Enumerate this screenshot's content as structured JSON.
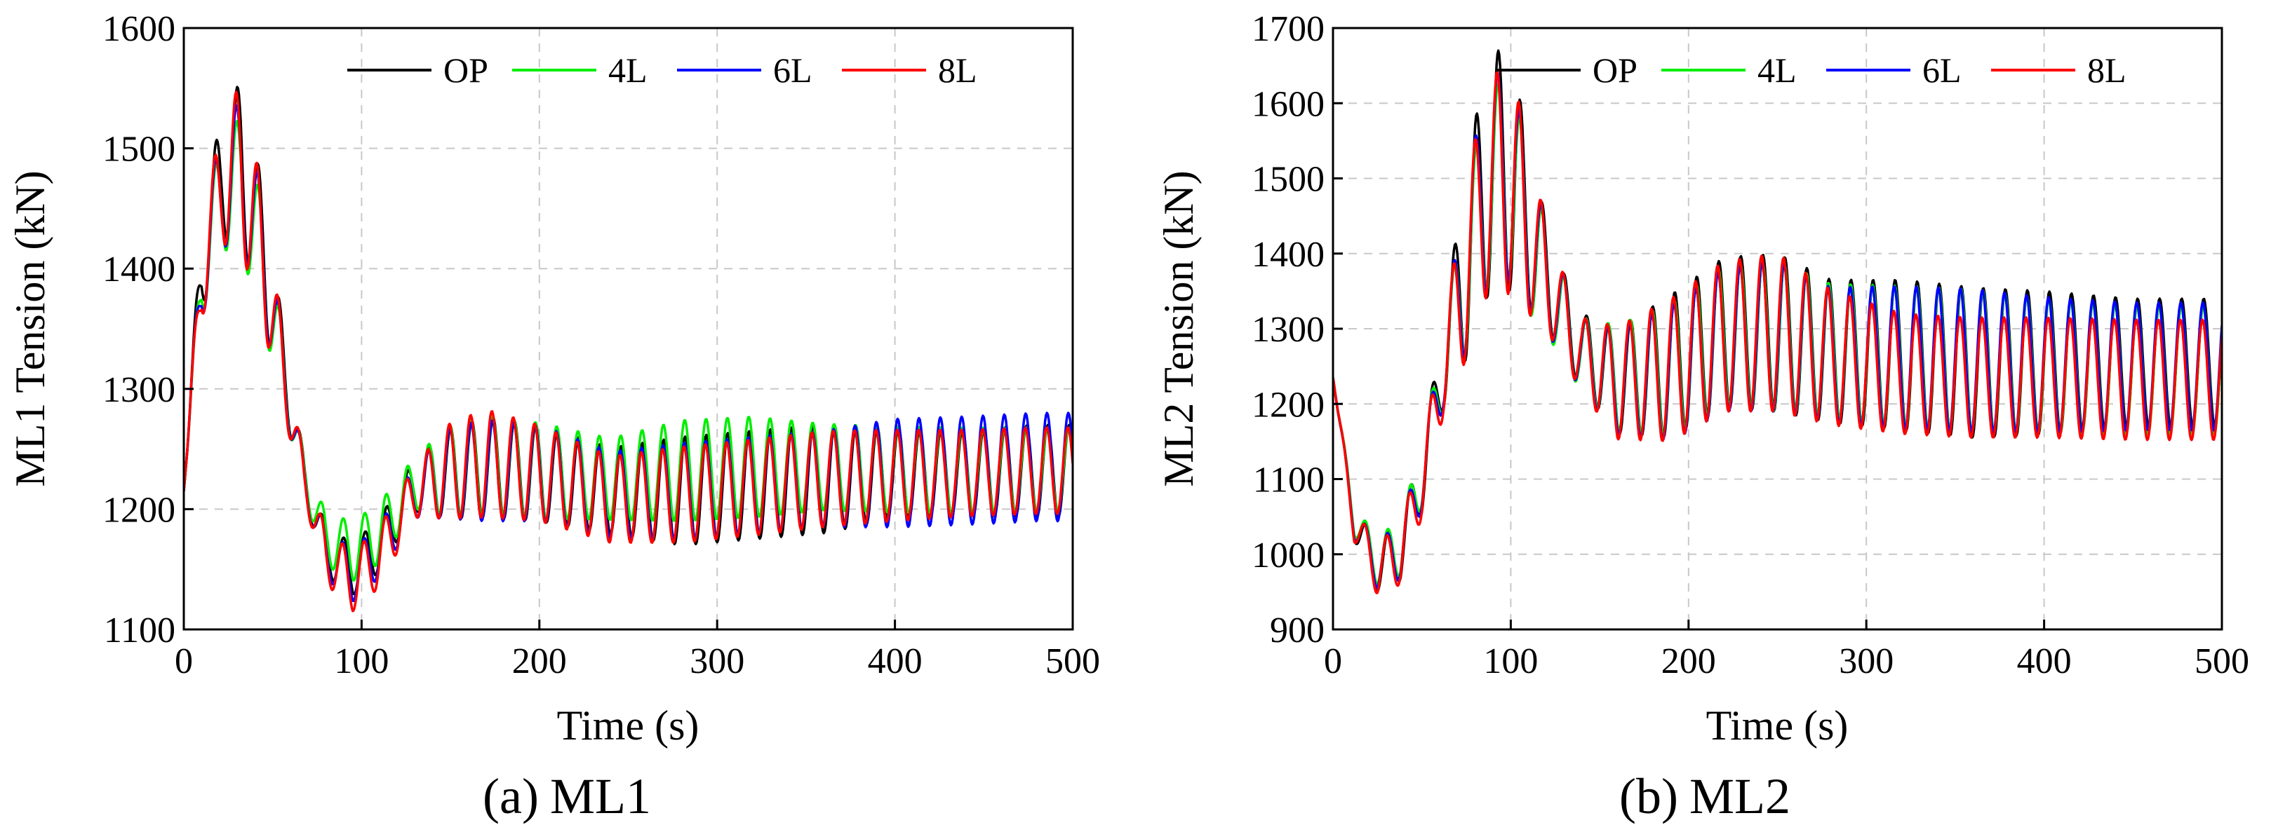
{
  "colors": {
    "OP": "#000000",
    "4L": "#00ee00",
    "6L": "#0000ff",
    "8L": "#ff0000"
  },
  "chart_data": [
    {
      "id": "ml1",
      "type": "line",
      "caption_letter": "(a)",
      "caption_text": "ML1",
      "xlabel": "Time (s)",
      "ylabel": "ML1 Tension (kN)",
      "xlim": [
        0,
        500
      ],
      "ylim": [
        1100,
        1600
      ],
      "xticks": [
        0,
        100,
        200,
        300,
        400,
        500
      ],
      "yticks": [
        1100,
        1200,
        1300,
        1400,
        1500,
        1600
      ],
      "grid": true,
      "legend": [
        "OP",
        "4L",
        "6L",
        "8L"
      ],
      "legend_position": "top",
      "wave_period_s": 12.0,
      "series": [
        {
          "name": "OP",
          "envelope": {
            "t": [
              0,
              10,
              22,
              32,
              45,
              57,
              68,
              80,
              95,
              110,
              130,
              150,
              170,
              200,
              240,
              280,
              320,
              360,
              400,
              440,
              480,
              500
            ],
            "mean": [
              1215,
              1405,
              1480,
              1490,
              1410,
              1310,
              1225,
              1165,
              1150,
              1170,
              1220,
              1230,
              1235,
              1230,
              1215,
              1215,
              1220,
              1225,
              1230,
              1230,
              1232,
              1232
            ],
            "amp": [
              0,
              40,
              55,
              65,
              55,
              30,
              15,
              20,
              22,
              22,
              22,
              38,
              42,
              40,
              36,
              45,
              45,
              45,
              38,
              36,
              38,
              38
            ]
          }
        },
        {
          "name": "4L",
          "envelope": {
            "t": [
              0,
              10,
              22,
              32,
              45,
              57,
              68,
              80,
              95,
              110,
              130,
              150,
              170,
              200,
              240,
              280,
              320,
              360,
              400,
              440,
              480,
              500
            ],
            "mean": [
              1215,
              1395,
              1465,
              1470,
              1400,
              1305,
              1225,
              1175,
              1165,
              1180,
              1222,
              1232,
              1235,
              1232,
              1225,
              1232,
              1235,
              1235,
              1233,
              1232,
              1232,
              1232
            ],
            "amp": [
              0,
              35,
              50,
              55,
              50,
              28,
              15,
              22,
              25,
              25,
              22,
              38,
              42,
              40,
              34,
              42,
              42,
              36,
              36,
              36,
              36,
              36
            ]
          }
        },
        {
          "name": "6L",
          "envelope": {
            "t": [
              0,
              10,
              22,
              32,
              45,
              57,
              68,
              80,
              95,
              110,
              130,
              150,
              170,
              200,
              240,
              280,
              320,
              360,
              400,
              440,
              480,
              500
            ],
            "mean": [
              1215,
              1395,
              1470,
              1480,
              1405,
              1305,
              1222,
              1162,
              1145,
              1165,
              1215,
              1230,
              1232,
              1230,
              1212,
              1215,
              1220,
              1225,
              1230,
              1232,
              1235,
              1235
            ],
            "amp": [
              0,
              38,
              52,
              60,
              52,
              28,
              15,
              20,
              22,
              22,
              22,
              38,
              42,
              40,
              36,
              40,
              40,
              40,
              45,
              45,
              45,
              45
            ]
          }
        },
        {
          "name": "8L",
          "envelope": {
            "t": [
              0,
              10,
              22,
              32,
              45,
              57,
              68,
              80,
              95,
              110,
              130,
              150,
              170,
              200,
              240,
              280,
              320,
              360,
              400,
              440,
              480,
              500
            ],
            "mean": [
              1215,
              1395,
              1475,
              1485,
              1405,
              1305,
              1222,
              1160,
              1140,
              1160,
              1215,
              1232,
              1238,
              1230,
              1208,
              1212,
              1218,
              1225,
              1228,
              1230,
              1232,
              1232
            ],
            "amp": [
              0,
              38,
              55,
              68,
              55,
              30,
              15,
              22,
              25,
              25,
              22,
              40,
              45,
              40,
              36,
              40,
              40,
              40,
              38,
              36,
              36,
              36
            ]
          }
        }
      ]
    },
    {
      "id": "ml2",
      "type": "line",
      "caption_letter": "(b)",
      "caption_text": "ML2",
      "xlabel": "Time (s)",
      "ylabel": "ML2 Tension (kN)",
      "xlim": [
        0,
        500
      ],
      "ylim": [
        900,
        1700
      ],
      "xticks": [
        0,
        100,
        200,
        300,
        400,
        500
      ],
      "yticks": [
        900,
        1000,
        1100,
        1200,
        1300,
        1400,
        1500,
        1600,
        1700
      ],
      "grid": true,
      "legend": [
        "OP",
        "4L",
        "6L",
        "8L"
      ],
      "legend_position": "top",
      "wave_period_s": 12.4,
      "series": [
        {
          "name": "OP",
          "envelope": {
            "t": [
              0,
              12,
              25,
              38,
              50,
              62,
              75,
              88,
              100,
              112,
              125,
              140,
              160,
              190,
              220,
              250,
              280,
              320,
              360,
              400,
              450,
              500
            ],
            "mean": [
              1235,
              1040,
              985,
              1005,
              1100,
              1250,
              1390,
              1510,
              1510,
              1420,
              1340,
              1270,
              1230,
              1250,
              1295,
              1295,
              1270,
              1265,
              1255,
              1255,
              1255,
              1255
            ],
            "amp": [
              0,
              22,
              35,
              40,
              45,
              55,
              130,
              160,
              160,
              100,
              60,
              50,
              70,
              95,
              100,
              105,
              95,
              100,
              100,
              95,
              85,
              85
            ]
          }
        },
        {
          "name": "4L",
          "envelope": {
            "t": [
              0,
              12,
              25,
              38,
              50,
              62,
              75,
              88,
              100,
              112,
              125,
              140,
              160,
              190,
              220,
              250,
              280,
              320,
              360,
              400,
              450,
              500
            ],
            "mean": [
              1235,
              1045,
              990,
              1010,
              1105,
              1245,
              1380,
              1490,
              1500,
              1410,
              1335,
              1265,
              1235,
              1245,
              1290,
              1290,
              1270,
              1262,
              1258,
              1250,
              1245,
              1245
            ],
            "amp": [
              0,
              20,
              32,
              38,
              40,
              50,
              110,
              130,
              135,
              95,
              60,
              50,
              70,
              90,
              95,
              100,
              90,
              95,
              95,
              90,
              85,
              85
            ]
          }
        },
        {
          "name": "6L",
          "envelope": {
            "t": [
              0,
              12,
              25,
              38,
              50,
              62,
              75,
              88,
              100,
              112,
              125,
              140,
              160,
              190,
              220,
              250,
              280,
              320,
              360,
              400,
              450,
              500
            ],
            "mean": [
              1235,
              1040,
              985,
              1005,
              1100,
              1245,
              1385,
              1500,
              1505,
              1415,
              1338,
              1265,
              1230,
              1240,
              1285,
              1290,
              1265,
              1262,
              1258,
              1252,
              1250,
              1250
            ],
            "amp": [
              0,
              20,
              32,
              38,
              40,
              50,
              115,
              140,
              140,
              95,
              60,
              50,
              70,
              90,
              95,
              100,
              90,
              95,
              95,
              90,
              85,
              85
            ]
          }
        },
        {
          "name": "8L",
          "envelope": {
            "t": [
              0,
              12,
              25,
              38,
              50,
              62,
              75,
              88,
              100,
              112,
              125,
              140,
              160,
              190,
              220,
              250,
              280,
              320,
              360,
              400,
              450,
              500
            ],
            "mean": [
              1235,
              1038,
              980,
              1000,
              1095,
              1240,
              1380,
              1495,
              1500,
              1415,
              1340,
              1265,
              1228,
              1245,
              1290,
              1295,
              1262,
              1240,
              1235,
              1235,
              1232,
              1232
            ],
            "amp": [
              0,
              22,
              35,
              40,
              45,
              55,
              120,
              140,
              155,
              100,
              60,
              50,
              75,
              95,
              100,
              105,
              90,
              80,
              80,
              80,
              80,
              80
            ]
          }
        }
      ]
    }
  ]
}
